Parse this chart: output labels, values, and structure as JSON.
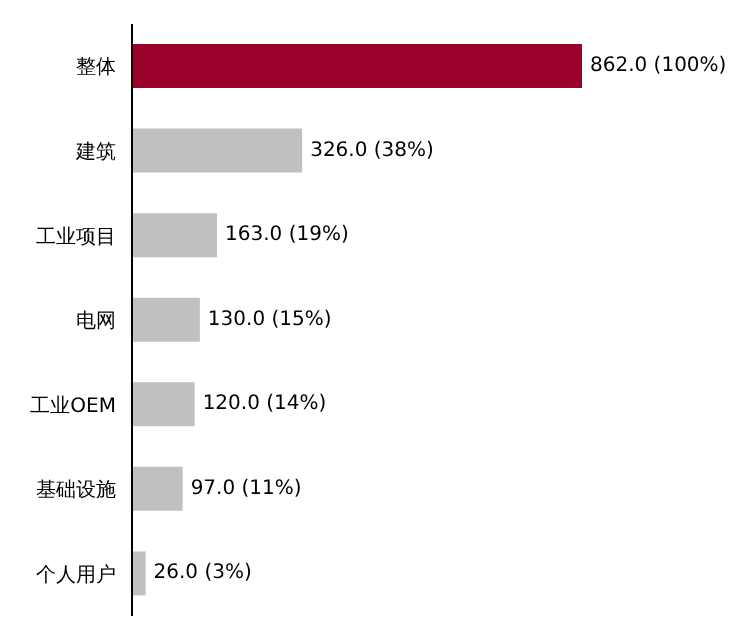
{
  "chart_data": {
    "type": "bar",
    "orientation": "horizontal",
    "categories": [
      "整体",
      "建筑",
      "工业项目",
      "电网",
      "工业OEM",
      "基础设施",
      "个人用户"
    ],
    "values": [
      862,
      326,
      163,
      130,
      120,
      97,
      26
    ],
    "colors": [
      "#99002a",
      "#c0c0c0",
      "#c0c0c0",
      "#c0c0c0",
      "#c0c0c0",
      "#c0c0c0",
      "#c0c0c0"
    ],
    "value_labels": [
      "862.0 (100%)",
      "326.0 (38%)",
      "163.0 (19%)",
      "130.0 (15%)",
      "120.0 (14%)",
      "97.0 (11%)",
      "26.0 (3%)"
    ],
    "grid": false
  }
}
